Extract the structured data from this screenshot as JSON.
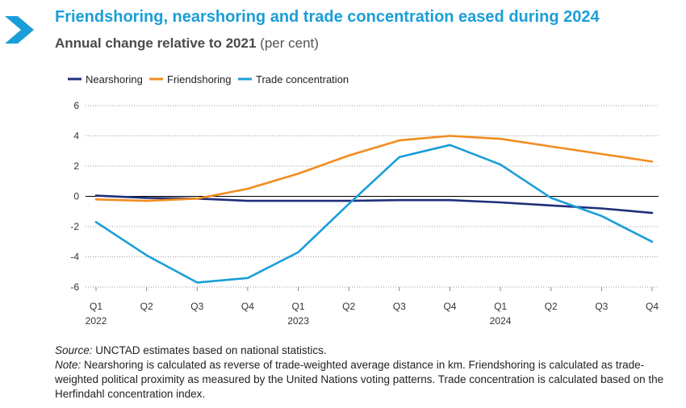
{
  "header": {
    "title": "Friendshoring, nearshoring and trade concentration eased during 2024",
    "subtitle": "Annual change relative to 2021",
    "subtitle_unit": "(per cent)"
  },
  "footer": {
    "source_label": "Source:",
    "source_text": " UNCTAD estimates based on national statistics.",
    "note_label": "Note:",
    "note_text": " Nearshoring is calculated as reverse of trade-weighted average distance in km. Friendshoring is calculated as trade-weighted political proximity as measured by the United Nations voting patterns. Trade concentration is calculated based on the Herfindahl concentration index."
  },
  "colors": {
    "title": "#1a9ed9",
    "chevron": "#1a9ed9"
  },
  "chart_data": {
    "type": "line",
    "title": "Friendshoring, nearshoring and trade concentration eased during 2024",
    "subtitle": "Annual change relative to 2021 (per cent)",
    "categories": [
      "Q1",
      "Q2",
      "Q3",
      "Q4",
      "Q1",
      "Q2",
      "Q3",
      "Q4",
      "Q1",
      "Q2",
      "Q3",
      "Q4"
    ],
    "year_labels": [
      "2022",
      "",
      "",
      "",
      "2023",
      "",
      "",
      "",
      "2024",
      "",
      "",
      ""
    ],
    "yticks": [
      6,
      4,
      2,
      0,
      -2,
      -4,
      -6
    ],
    "ylim": [
      -6,
      6
    ],
    "grid": "dotted horizontal",
    "legend_position": "top-left",
    "series": [
      {
        "name": "Nearshoring",
        "color": "#1f2f7a",
        "values": [
          0.05,
          -0.1,
          -0.15,
          -0.3,
          -0.3,
          -0.3,
          -0.25,
          -0.25,
          -0.4,
          -0.6,
          -0.8,
          -1.1
        ]
      },
      {
        "name": "Friendshoring",
        "color": "#f28c1e",
        "values": [
          -0.2,
          -0.3,
          -0.15,
          0.5,
          1.5,
          2.7,
          3.7,
          4.0,
          3.8,
          3.3,
          2.8,
          2.3
        ]
      },
      {
        "name": "Trade concentration",
        "color": "#1a9ed9",
        "values": [
          -1.7,
          -3.9,
          -5.7,
          -5.4,
          -3.7,
          -0.5,
          2.6,
          3.4,
          2.1,
          -0.1,
          -1.3,
          -3.0
        ]
      }
    ]
  }
}
